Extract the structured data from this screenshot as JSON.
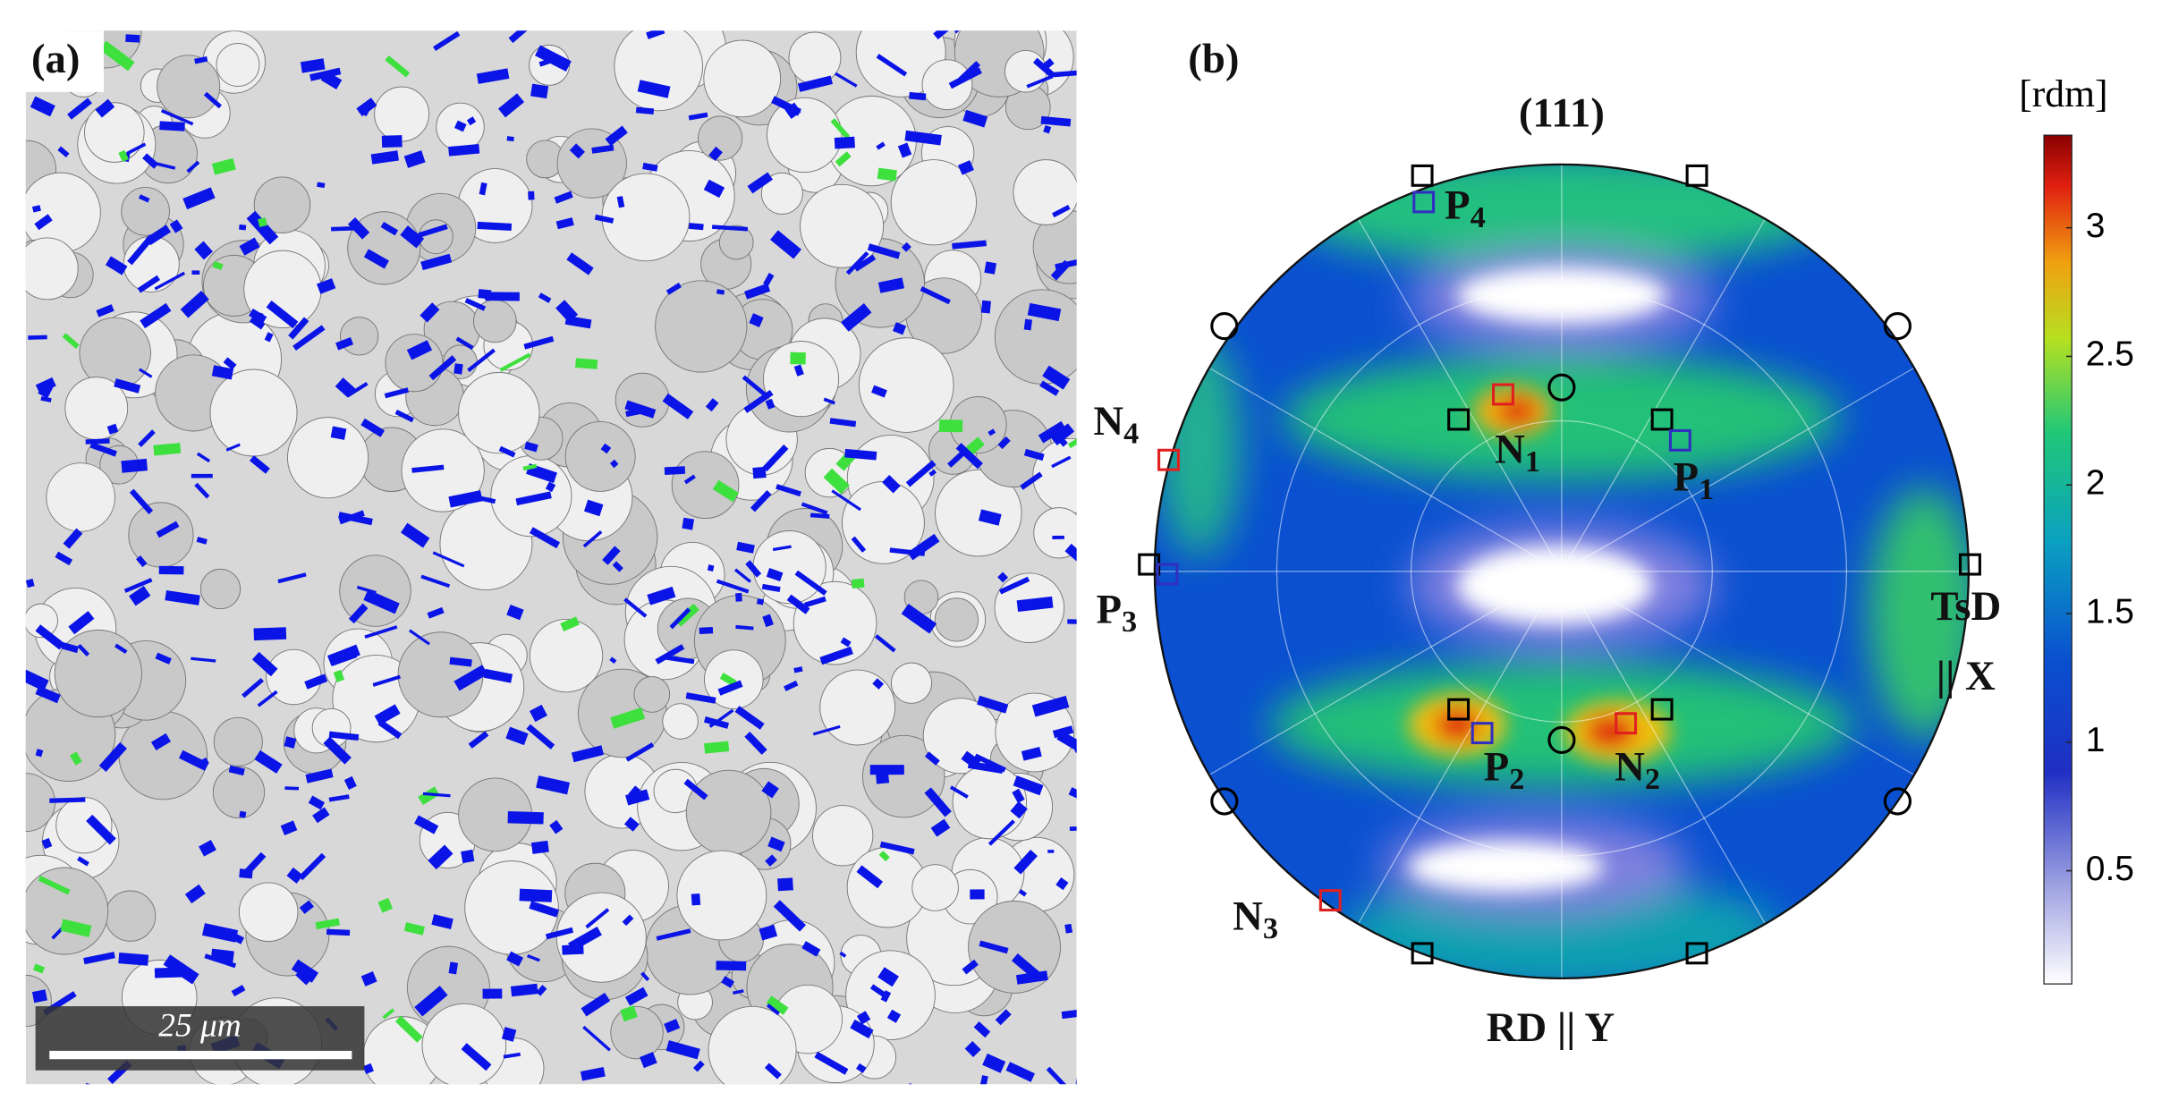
{
  "panels": [
    {
      "label": "(a)",
      "scale_bar": "25 μm"
    },
    {
      "label": "(b)",
      "title": "(111)",
      "x_axis": {
        "line1": "TsD",
        "line2": "|| X"
      },
      "y_axis": "RD || Y",
      "markers": [
        {
          "letter": "P",
          "sub": "4"
        },
        {
          "letter": "N",
          "sub": "1"
        },
        {
          "letter": "P",
          "sub": "1"
        },
        {
          "letter": "N",
          "sub": "4"
        },
        {
          "letter": "P",
          "sub": "3"
        },
        {
          "letter": "N",
          "sub": "3"
        },
        {
          "letter": "P",
          "sub": "2"
        },
        {
          "letter": "N",
          "sub": "2"
        }
      ]
    }
  ],
  "colorbar": {
    "label": "[rdm]",
    "lim": [
      0.06,
      3.36
    ],
    "ticks": [
      0.5,
      1,
      1.5,
      2,
      2.5,
      3
    ]
  }
}
